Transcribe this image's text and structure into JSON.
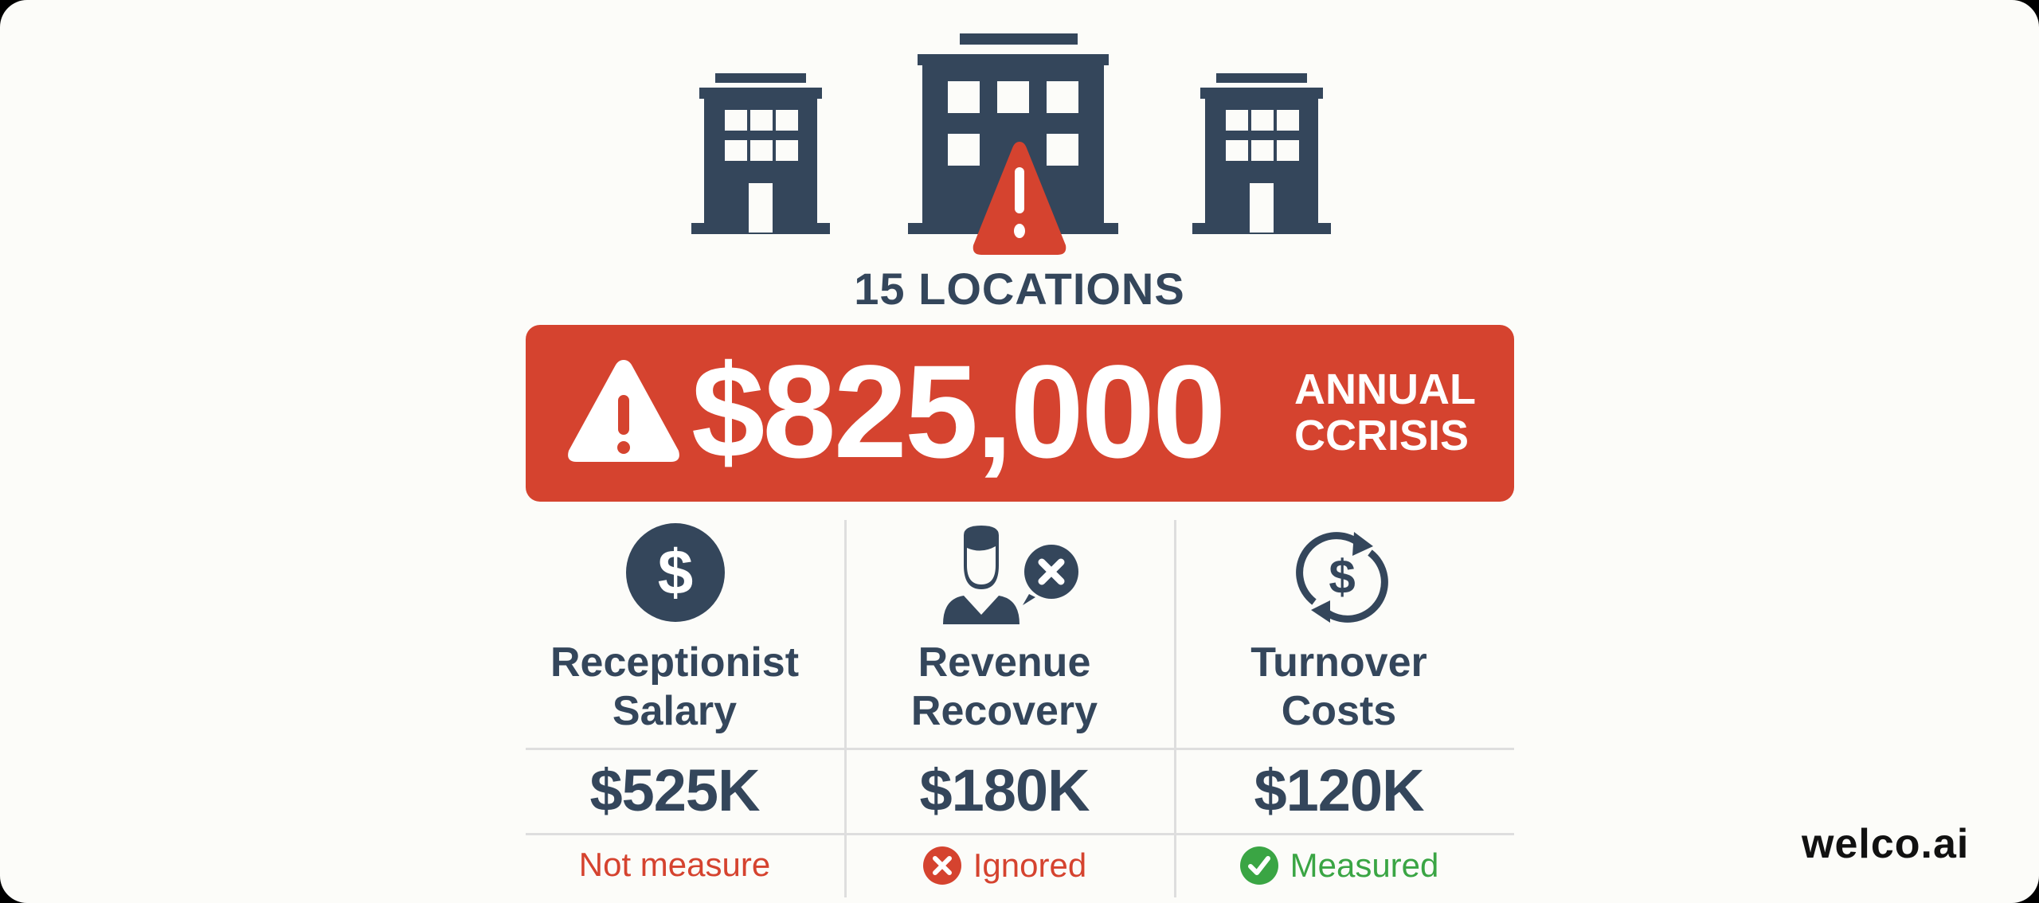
{
  "header": {
    "locations_label": "15 LOCATIONS"
  },
  "banner": {
    "amount": "$825,000",
    "line1": "ANNUAL",
    "line2": "CCRISIS",
    "icon": "warning-icon"
  },
  "columns": [
    {
      "icon": "dollar-circle-icon",
      "title_line1": "Receptionist",
      "title_line2": "Salary",
      "value": "$525K",
      "status": "Not measure",
      "status_icon": "",
      "status_color": "#d5432f"
    },
    {
      "icon": "person-x-icon",
      "title_line1": "Revenue",
      "title_line2": "Recovery",
      "value": "$180K",
      "status": "Ignored",
      "status_icon": "x-circle-icon",
      "status_color": "#d5432f"
    },
    {
      "icon": "dollar-cycle-icon",
      "title_line1": "Turnover",
      "title_line2": "Costs",
      "value": "$120K",
      "status": "Measured",
      "status_icon": "check-circle-icon",
      "status_color": "#3aa544"
    }
  ],
  "logo": {
    "text": "welco.ai"
  },
  "colors": {
    "navy": "#34465b",
    "red": "#d5432f",
    "green": "#3aa544",
    "background": "#fcfcf9"
  }
}
